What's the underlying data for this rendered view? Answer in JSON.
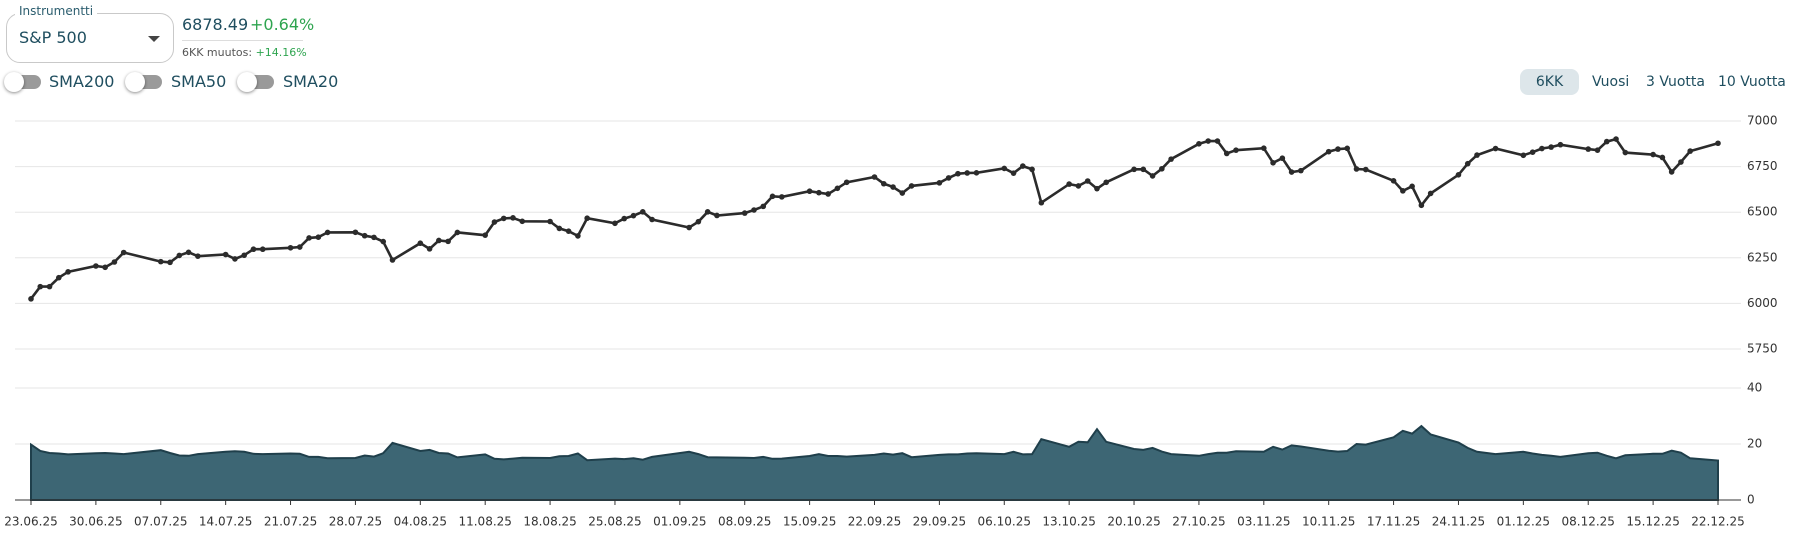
{
  "instrument": {
    "label": "Instrumentti",
    "selected": "S&P 500",
    "price": "6878.49",
    "change": "+0.64%",
    "period_change_label": "6KK muutos:",
    "period_change": "+14.16%"
  },
  "toggles": [
    "SMA200",
    "SMA50",
    "SMA20"
  ],
  "periods": [
    "6KK",
    "Vuosi",
    "3 Vuotta",
    "10 Vuotta"
  ],
  "active_period": "6KK",
  "chart_data": {
    "type": "line",
    "x": [
      "23.06.25",
      "24.06.25",
      "25.06.25",
      "26.06.25",
      "27.06.25",
      "30.06.25",
      "01.07.25",
      "02.07.25",
      "03.07.25",
      "07.07.25",
      "08.07.25",
      "09.07.25",
      "10.07.25",
      "11.07.25",
      "14.07.25",
      "15.07.25",
      "16.07.25",
      "17.07.25",
      "18.07.25",
      "21.07.25",
      "22.07.25",
      "23.07.25",
      "24.07.25",
      "25.07.25",
      "28.07.25",
      "29.07.25",
      "30.07.25",
      "31.07.25",
      "01.08.25",
      "04.08.25",
      "05.08.25",
      "06.08.25",
      "07.08.25",
      "08.08.25",
      "11.08.25",
      "12.08.25",
      "13.08.25",
      "14.08.25",
      "15.08.25",
      "18.08.25",
      "19.08.25",
      "20.08.25",
      "21.08.25",
      "22.08.25",
      "25.08.25",
      "26.08.25",
      "27.08.25",
      "28.08.25",
      "29.08.25",
      "02.09.25",
      "03.09.25",
      "04.09.25",
      "05.09.25",
      "08.09.25",
      "09.09.25",
      "10.09.25",
      "11.09.25",
      "12.09.25",
      "15.09.25",
      "16.09.25",
      "17.09.25",
      "18.09.25",
      "19.09.25",
      "22.09.25",
      "23.09.25",
      "24.09.25",
      "25.09.25",
      "26.09.25",
      "29.09.25",
      "30.09.25",
      "01.10.25",
      "02.10.25",
      "03.10.25",
      "06.10.25",
      "07.10.25",
      "08.10.25",
      "09.10.25",
      "10.10.25",
      "13.10.25",
      "14.10.25",
      "15.10.25",
      "16.10.25",
      "17.10.25",
      "20.10.25",
      "21.10.25",
      "22.10.25",
      "23.10.25",
      "24.10.25",
      "27.10.25",
      "28.10.25",
      "29.10.25",
      "30.10.25",
      "31.10.25",
      "03.11.25",
      "04.11.25",
      "05.11.25",
      "06.11.25",
      "07.11.25",
      "10.11.25",
      "11.11.25",
      "12.11.25",
      "13.11.25",
      "14.11.25",
      "17.11.25",
      "18.11.25",
      "19.11.25",
      "20.11.25",
      "21.11.25",
      "24.11.25",
      "25.11.25",
      "26.11.25",
      "28.11.25",
      "01.12.25",
      "02.12.25",
      "03.12.25",
      "04.12.25",
      "05.12.25",
      "08.12.25",
      "09.12.25",
      "10.12.25",
      "11.12.25",
      "12.12.25",
      "15.12.25",
      "16.12.25",
      "17.12.25",
      "18.12.25",
      "19.12.25",
      "22.12.25"
    ],
    "xlim": [
      "23.06.25",
      "22.12.25"
    ],
    "xticks": [
      "23.06.25",
      "30.06.25",
      "07.07.25",
      "14.07.25",
      "21.07.25",
      "28.07.25",
      "04.08.25",
      "11.08.25",
      "18.08.25",
      "25.08.25",
      "01.09.25",
      "08.09.25",
      "15.09.25",
      "22.09.25",
      "29.09.25",
      "06.10.25",
      "13.10.25",
      "20.10.25",
      "27.10.25",
      "03.11.25",
      "10.11.25",
      "17.11.25",
      "24.11.25",
      "01.12.25",
      "08.12.25",
      "15.12.25",
      "22.12.25"
    ],
    "ylim": [
      5750,
      7000
    ],
    "yticks": [
      5750,
      6000,
      6250,
      6500,
      6750,
      7000
    ],
    "y2lim": [
      0,
      40
    ],
    "y2ticks": [
      0,
      20,
      40
    ],
    "grid": true,
    "series": [
      {
        "color": "#2b2b2b",
        "markers": true,
        "values": [
          6025,
          6092,
          6092,
          6141,
          6173,
          6205,
          6198,
          6227,
          6279,
          6229,
          6225,
          6263,
          6280,
          6259,
          6268,
          6244,
          6264,
          6297,
          6297,
          6305,
          6309,
          6359,
          6363,
          6389,
          6390,
          6371,
          6362,
          6339,
          6238,
          6330,
          6299,
          6345,
          6340,
          6389,
          6374,
          6446,
          6466,
          6469,
          6450,
          6449,
          6411,
          6396,
          6370,
          6467,
          6439,
          6465,
          6481,
          6502,
          6460,
          6416,
          6448,
          6502,
          6482,
          6495,
          6512,
          6532,
          6587,
          6584,
          6615,
          6607,
          6600,
          6631,
          6664,
          6693,
          6656,
          6638,
          6605,
          6644,
          6661,
          6688,
          6711,
          6715,
          6716,
          6740,
          6714,
          6753,
          6735,
          6552,
          6654,
          6644,
          6671,
          6629,
          6664,
          6735,
          6735,
          6699,
          6738,
          6791,
          6875,
          6890,
          6890,
          6822,
          6840,
          6851,
          6771,
          6796,
          6720,
          6728,
          6832,
          6846,
          6850,
          6737,
          6734,
          6672,
          6617,
          6642,
          6538,
          6603,
          6705,
          6766,
          6813,
          6849,
          6812,
          6829,
          6849,
          6857,
          6870,
          6846,
          6840,
          6887,
          6901,
          6827,
          6816,
          6800,
          6721,
          6775,
          6835,
          6878
        ]
      },
      {
        "axis": "y2",
        "color": "#1f3f4b",
        "fill": "#3d6674",
        "values": [
          19.8,
          17.5,
          16.8,
          16.6,
          16.3,
          16.7,
          16.8,
          16.6,
          16.4,
          17.8,
          16.8,
          15.9,
          15.8,
          16.4,
          17.2,
          17.4,
          17.2,
          16.5,
          16.4,
          16.6,
          16.5,
          15.4,
          15.4,
          14.9,
          15.0,
          15.9,
          15.5,
          16.7,
          20.4,
          17.5,
          17.9,
          16.8,
          16.6,
          15.2,
          16.3,
          14.7,
          14.5,
          14.8,
          15.1,
          15.0,
          15.6,
          15.7,
          16.6,
          14.2,
          14.8,
          14.6,
          14.9,
          14.4,
          15.4,
          17.2,
          16.4,
          15.3,
          15.2,
          15.1,
          15.0,
          15.4,
          14.7,
          14.8,
          15.7,
          16.4,
          15.7,
          15.7,
          15.5,
          16.1,
          16.6,
          16.2,
          16.7,
          15.3,
          16.1,
          16.3,
          16.3,
          16.6,
          16.7,
          16.4,
          17.2,
          16.3,
          16.4,
          21.7,
          19.0,
          20.8,
          20.6,
          25.3,
          20.8,
          18.2,
          17.9,
          18.6,
          17.3,
          16.4,
          15.8,
          16.4,
          16.9,
          16.9,
          17.4,
          17.2,
          19.0,
          18.0,
          19.5,
          19.1,
          17.6,
          17.3,
          17.5,
          20.0,
          19.8,
          22.4,
          24.7,
          23.7,
          26.4,
          23.4,
          20.5,
          18.6,
          17.2,
          16.4,
          17.2,
          16.6,
          16.1,
          15.8,
          15.4,
          16.7,
          16.9,
          15.8,
          14.9,
          16.0,
          16.5,
          16.5,
          17.6,
          16.9,
          14.9,
          14.1
        ]
      }
    ]
  }
}
